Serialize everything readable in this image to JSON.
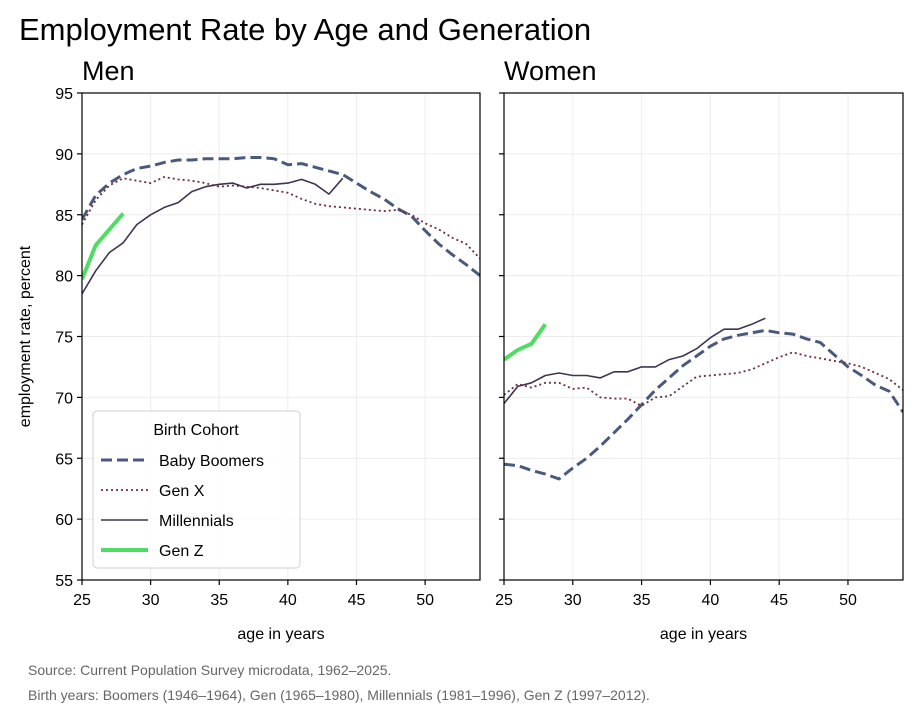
{
  "title": "Employment Rate by Age and Generation",
  "source_lines": [
    "Source: Current Population Survey microdata, 1962–2025.",
    "Birth years: Boomers (1946–1964), Gen (1965–1980), Millennials (1981–1996), Gen Z (1997–2012)."
  ],
  "legend": {
    "title": "Birth Cohort",
    "entries": [
      "Baby Boomers",
      "Gen X",
      "Millennials",
      "Gen Z"
    ]
  },
  "colors": {
    "Baby Boomers": "#4a5a7d",
    "Gen X": "#6e2c3c",
    "Millennials": "#3f3450",
    "Gen Z": "#4fdc63"
  },
  "chart_data": [
    {
      "type": "line",
      "title": "Men",
      "xlabel": "age in years",
      "ylabel": "employment rate, percent",
      "xlim": [
        25,
        54
      ],
      "ylim": [
        55,
        95
      ],
      "xticks": [
        25,
        30,
        35,
        40,
        45,
        50
      ],
      "yticks": [
        55,
        60,
        65,
        70,
        75,
        80,
        85,
        90,
        95
      ],
      "grid": true,
      "legend_position": "lower-left",
      "series": [
        {
          "name": "Baby Boomers",
          "style": "dashed",
          "x": [
            25,
            26,
            27,
            28,
            29,
            30,
            31,
            32,
            33,
            34,
            35,
            36,
            37,
            38,
            39,
            40,
            41,
            42,
            43,
            44,
            45,
            46,
            47,
            48,
            49,
            50,
            51,
            52,
            53,
            54
          ],
          "y": [
            84.6,
            86.6,
            87.6,
            88.3,
            88.8,
            89.0,
            89.3,
            89.5,
            89.5,
            89.6,
            89.6,
            89.6,
            89.7,
            89.7,
            89.6,
            89.1,
            89.2,
            88.9,
            88.6,
            88.3,
            87.6,
            86.9,
            86.3,
            85.5,
            84.9,
            83.7,
            82.6,
            81.7,
            80.9,
            80.0
          ]
        },
        {
          "name": "Gen X",
          "style": "dotted",
          "x": [
            25,
            26,
            27,
            28,
            29,
            30,
            31,
            32,
            33,
            34,
            35,
            36,
            37,
            38,
            39,
            40,
            41,
            42,
            43,
            44,
            45,
            46,
            47,
            48,
            49,
            50,
            51,
            52,
            53,
            54
          ],
          "y": [
            84.2,
            86.2,
            87.4,
            88.0,
            87.8,
            87.6,
            88.1,
            87.9,
            87.8,
            87.6,
            87.3,
            87.4,
            87.3,
            87.2,
            87.0,
            86.8,
            86.3,
            85.9,
            85.7,
            85.6,
            85.5,
            85.4,
            85.3,
            85.4,
            85.0,
            84.3,
            83.8,
            83.1,
            82.6,
            81.4
          ]
        },
        {
          "name": "Millennials",
          "style": "solid",
          "x": [
            25,
            26,
            27,
            28,
            29,
            30,
            31,
            32,
            33,
            34,
            35,
            36,
            37,
            38,
            39,
            40,
            41,
            42,
            43,
            44
          ],
          "y": [
            78.5,
            80.4,
            81.9,
            82.7,
            84.2,
            85.0,
            85.6,
            86.0,
            86.9,
            87.3,
            87.5,
            87.6,
            87.2,
            87.5,
            87.5,
            87.6,
            87.9,
            87.5,
            86.7,
            88.0
          ]
        },
        {
          "name": "Gen Z",
          "style": "thick",
          "x": [
            25,
            26,
            27,
            28
          ],
          "y": [
            79.7,
            82.5,
            83.8,
            85.1
          ]
        }
      ]
    },
    {
      "type": "line",
      "title": "Women",
      "xlabel": "age in years",
      "ylabel": "",
      "xlim": [
        25,
        54
      ],
      "ylim": [
        55,
        95
      ],
      "xticks": [
        25,
        30,
        35,
        40,
        45,
        50
      ],
      "yticks": [
        55,
        60,
        65,
        70,
        75,
        80,
        85,
        90,
        95
      ],
      "grid": true,
      "series": [
        {
          "name": "Baby Boomers",
          "style": "dashed",
          "x": [
            25,
            26,
            27,
            28,
            29,
            30,
            31,
            32,
            33,
            34,
            35,
            36,
            37,
            38,
            39,
            40,
            41,
            42,
            43,
            44,
            45,
            46,
            47,
            48,
            49,
            50,
            51,
            52,
            53,
            54
          ],
          "y": [
            64.5,
            64.4,
            64.0,
            63.7,
            63.3,
            64.2,
            65.0,
            66.0,
            67.1,
            68.2,
            69.4,
            70.6,
            71.6,
            72.6,
            73.4,
            74.2,
            74.8,
            75.1,
            75.3,
            75.5,
            75.3,
            75.2,
            74.8,
            74.5,
            73.5,
            72.5,
            71.8,
            71.0,
            70.5,
            68.8
          ]
        },
        {
          "name": "Gen X",
          "style": "dotted",
          "x": [
            25,
            26,
            27,
            28,
            29,
            30,
            31,
            32,
            33,
            34,
            35,
            36,
            37,
            38,
            39,
            40,
            41,
            42,
            43,
            44,
            45,
            46,
            47,
            48,
            49,
            50,
            51,
            52,
            53,
            54
          ],
          "y": [
            70.2,
            71.1,
            70.8,
            71.2,
            71.2,
            70.7,
            70.8,
            70.0,
            69.9,
            69.9,
            69.3,
            70.0,
            70.1,
            70.9,
            71.7,
            71.8,
            71.9,
            72.0,
            72.3,
            72.8,
            73.3,
            73.7,
            73.4,
            73.2,
            73.0,
            72.8,
            72.5,
            72.0,
            71.5,
            70.6
          ]
        },
        {
          "name": "Millennials",
          "style": "solid",
          "x": [
            25,
            26,
            27,
            28,
            29,
            30,
            31,
            32,
            33,
            34,
            35,
            36,
            37,
            38,
            39,
            40,
            41,
            42,
            43,
            44
          ],
          "y": [
            69.5,
            70.9,
            71.2,
            71.8,
            72.0,
            71.8,
            71.8,
            71.6,
            72.1,
            72.1,
            72.5,
            72.5,
            73.1,
            73.4,
            74.0,
            74.9,
            75.6,
            75.6,
            76.0,
            76.5
          ]
        },
        {
          "name": "Gen Z",
          "style": "thick",
          "x": [
            25,
            26,
            27,
            28
          ],
          "y": [
            73.1,
            73.9,
            74.4,
            76.0
          ]
        }
      ]
    }
  ]
}
